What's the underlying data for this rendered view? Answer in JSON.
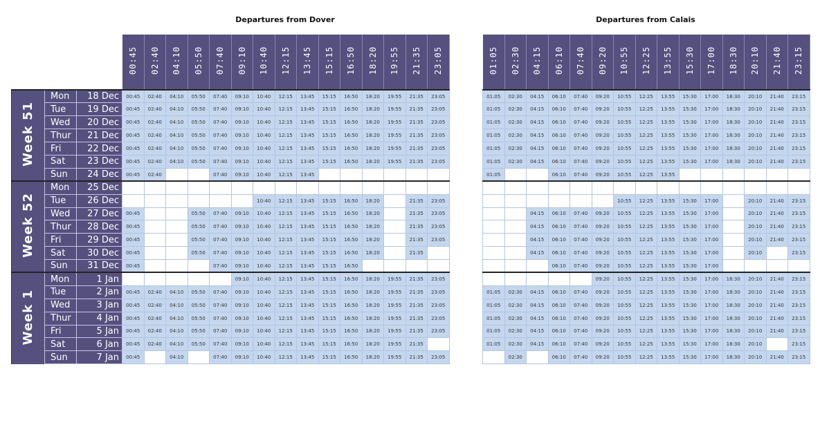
{
  "titles": {
    "dover": "Departures from Dover",
    "calais": "Departures from Calais"
  },
  "colors": {
    "header_bg": "#55507e",
    "cell_on": "#c4d7ef",
    "cell_off": "#ffffff"
  },
  "dover": {
    "times": [
      "00:45",
      "02:40",
      "04:10",
      "05:50",
      "07:40",
      "09:10",
      "10:40",
      "12:15",
      "13:45",
      "15:15",
      "16:50",
      "18:20",
      "19:55",
      "21:35",
      "23:05"
    ],
    "cell_labels": [
      "00:45",
      "02:40",
      "04:10",
      "05:50",
      "07:40",
      "09:10",
      "10:40",
      "12:15",
      "13:45",
      "15:15",
      "16:50",
      "18:20",
      "19:55",
      "21:35",
      "23:05"
    ]
  },
  "calais": {
    "times": [
      "01:05",
      "02:30",
      "04:15",
      "06:10",
      "07:40",
      "09:20",
      "10:55",
      "12:25",
      "13:55",
      "15:30",
      "17:00",
      "18:30",
      "20:10",
      "21:40",
      "23:15"
    ],
    "cell_labels": [
      "01:05",
      "02:30",
      "04:15",
      "06:10",
      "07:40",
      "09:20",
      "10:55",
      "12:25",
      "13:55",
      "15:30",
      "17:00",
      "18:30",
      "20:10",
      "21:40",
      "23:15"
    ]
  },
  "weeks": [
    {
      "label": "Week 51",
      "days": [
        {
          "day": "Mon",
          "date": "18 Dec",
          "dover": "111111111111111",
          "calais": "111111111111111"
        },
        {
          "day": "Tue",
          "date": "19 Dec",
          "dover": "111111111111111",
          "calais": "111111111111111"
        },
        {
          "day": "Wed",
          "date": "20 Dec",
          "dover": "111111111111111",
          "calais": "111111111111111"
        },
        {
          "day": "Thur",
          "date": "21 Dec",
          "dover": "111111111111111",
          "calais": "111111111111111"
        },
        {
          "day": "Fri",
          "date": "22 Dec",
          "dover": "111111111111111",
          "calais": "111111111111111"
        },
        {
          "day": "Sat",
          "date": "23 Dec",
          "dover": "111111111111111",
          "calais": "111111111111111"
        },
        {
          "day": "Sun",
          "date": "24 Dec",
          "dover": "110011111000000",
          "calais": "100111111000000"
        }
      ]
    },
    {
      "label": "Week 52",
      "days": [
        {
          "day": "Mon",
          "date": "25 Dec",
          "dover": "000000000000000",
          "calais": "000000000000000"
        },
        {
          "day": "Tue",
          "date": "26 Dec",
          "dover": "000000111111011",
          "calais": "000000111110111"
        },
        {
          "day": "Wed",
          "date": "27 Dec",
          "dover": "100111111111011",
          "calais": "001111111110111"
        },
        {
          "day": "Thur",
          "date": "28 Dec",
          "dover": "100111111111011",
          "calais": "001111111110111"
        },
        {
          "day": "Fri",
          "date": "29 Dec",
          "dover": "100111111111011",
          "calais": "001111111110111"
        },
        {
          "day": "Sat",
          "date": "30 Dec",
          "dover": "100111111111010",
          "calais": "001111111110101"
        },
        {
          "day": "Sun",
          "date": "31 Dec",
          "dover": "100011111110000",
          "calais": "000111111110000"
        }
      ]
    },
    {
      "label": "Week 1",
      "days": [
        {
          "day": "Mon",
          "date": "1 Jan",
          "dover": "000001111111111",
          "calais": "000001111111111"
        },
        {
          "day": "Tue",
          "date": "2 Jan",
          "dover": "111111111111111",
          "calais": "111111111111111"
        },
        {
          "day": "Wed",
          "date": "3 Jan",
          "dover": "111111111111111",
          "calais": "111111111111111"
        },
        {
          "day": "Thur",
          "date": "4 Jan",
          "dover": "111111111111111",
          "calais": "111111111111111"
        },
        {
          "day": "Fri",
          "date": "5 Jan",
          "dover": "111111111111111",
          "calais": "111111111111111"
        },
        {
          "day": "Sat",
          "date": "6 Jan",
          "dover": "111111111111110",
          "calais": "111111111111101"
        },
        {
          "day": "Sun",
          "date": "7 Jan",
          "dover": "101011111111111",
          "calais": "010111111111111"
        }
      ]
    }
  ]
}
